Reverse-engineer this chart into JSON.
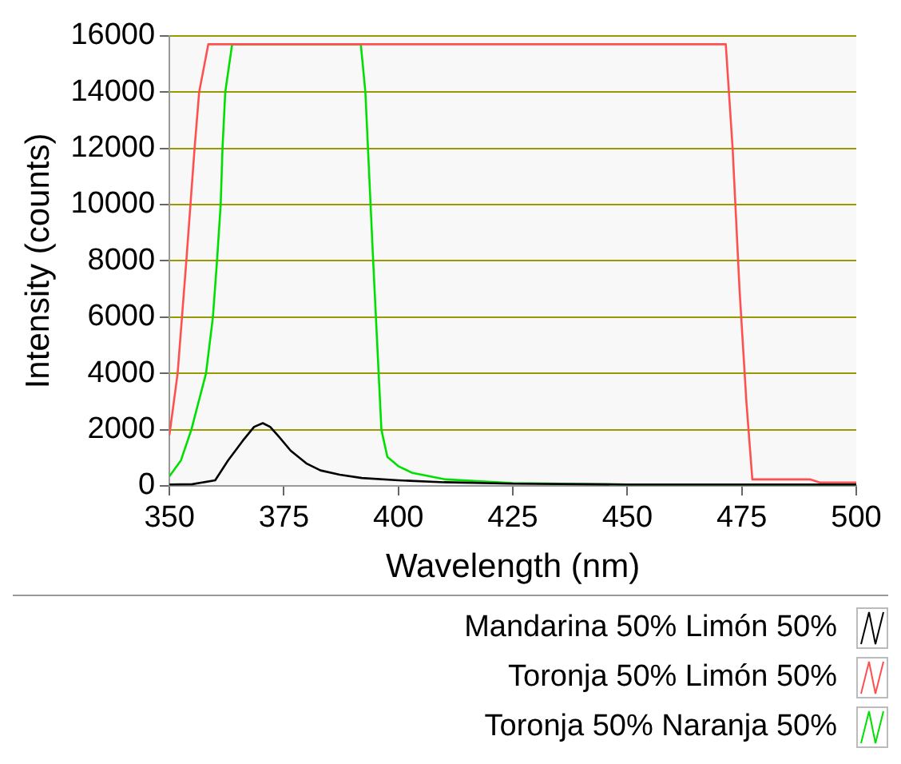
{
  "chart_data": {
    "type": "line",
    "xlabel": "Wavelength (nm)",
    "ylabel": "Intensity (counts)",
    "xlim": [
      350,
      500
    ],
    "xticks": [
      350,
      375,
      400,
      425,
      450,
      475,
      500
    ],
    "ylim": [
      0,
      16000
    ],
    "yticks": [
      0,
      2000,
      4000,
      6000,
      8000,
      10000,
      12000,
      14000,
      16000
    ],
    "grid": "y",
    "legend": "bottom",
    "marker": "none",
    "line_style": "solid",
    "series": [
      {
        "name": "Mandarina 50% Limón 50%",
        "color": "#000000",
        "x": [
          350,
          355,
          360,
          362.8,
          366,
          368.5,
          370.4,
          372,
          373.8,
          376.5,
          379.9,
          383,
          387.2,
          392,
          400,
          410,
          425,
          450,
          475,
          500
        ],
        "values": [
          50,
          60,
          200,
          900,
          1600,
          2100,
          2230,
          2100,
          1770,
          1250,
          800,
          550,
          400,
          280,
          200,
          130,
          80,
          50,
          50,
          50
        ]
      },
      {
        "name": "Toronja 50% Limón 50%",
        "color": "#ff5050",
        "x": [
          350,
          351.8,
          353.7,
          355.5,
          356.5,
          358.5,
          471.5,
          473,
          474.5,
          476,
          477.3,
          490,
          492,
          500
        ],
        "values": [
          1800,
          4000,
          8000,
          12000,
          14000,
          15700,
          15700,
          12000,
          7000,
          3000,
          230,
          230,
          120,
          120
        ]
      },
      {
        "name": "Toronja 50% Naranja 50%",
        "color": "#00e000",
        "x": [
          350,
          352.5,
          354.8,
          358,
          359.5,
          360.4,
          361.2,
          361.6,
          362.2,
          363.7,
          391.8,
          392.8,
          394.5,
          396.3,
          397.6,
          400,
          403.1,
          410.4,
          425,
          450,
          500
        ],
        "values": [
          340,
          900,
          2000,
          4000,
          6000,
          8000,
          10000,
          12000,
          14000,
          15700,
          15700,
          14000,
          8000,
          2000,
          1030,
          700,
          460,
          230,
          100,
          50,
          50
        ]
      }
    ]
  }
}
